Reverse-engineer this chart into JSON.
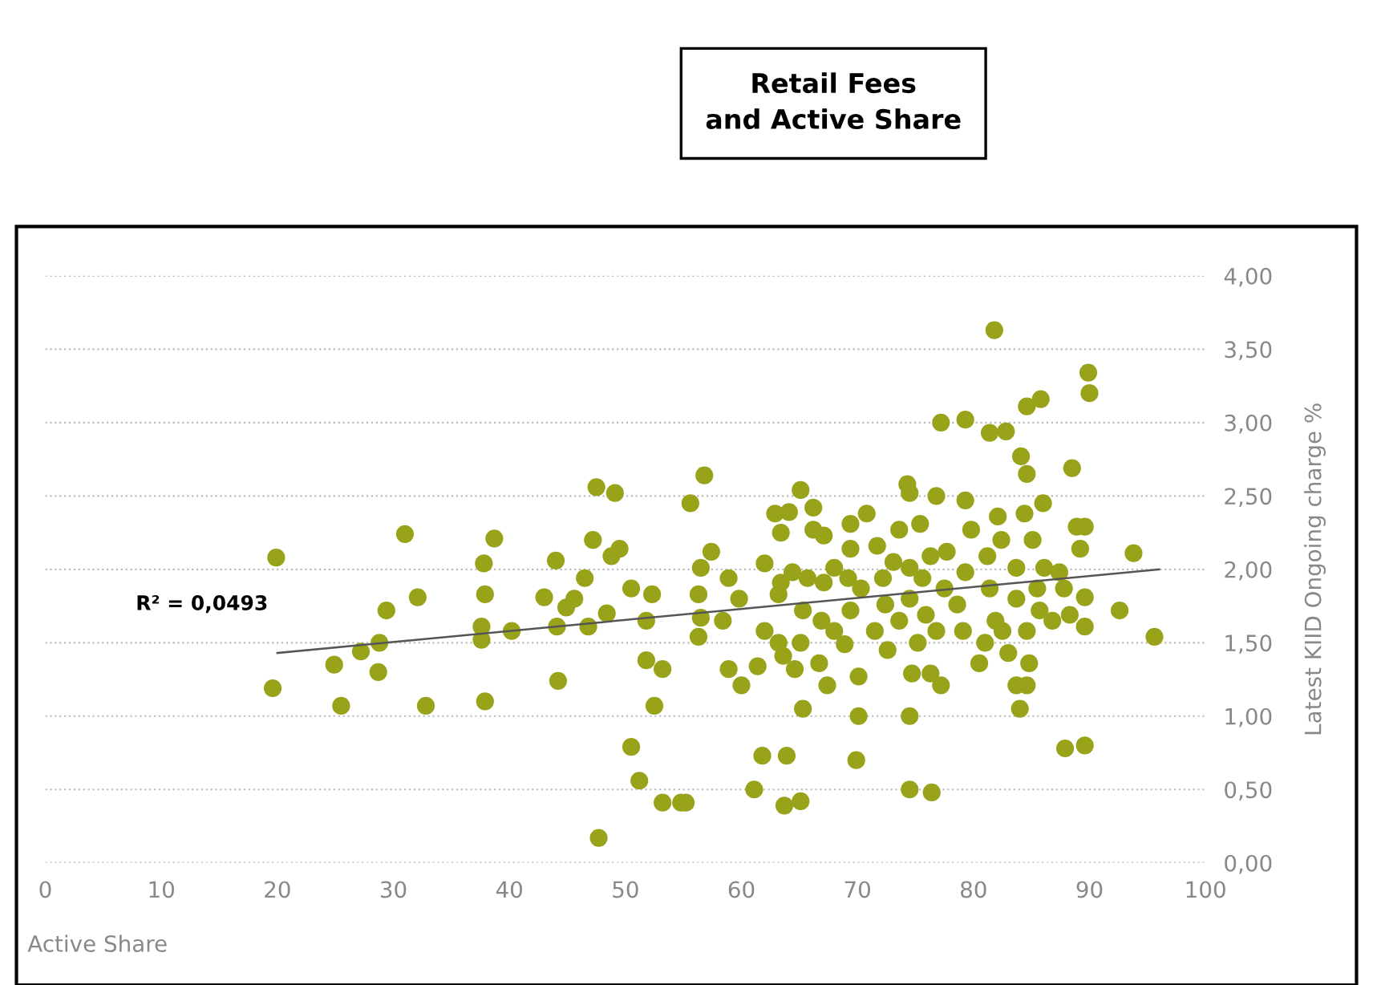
{
  "chart_data": {
    "type": "scatter",
    "title": "Retail Fees\nand Active Share",
    "xlabel": "Active Share",
    "ylabel": "Latest KIID Ongoing charge %",
    "annotations": [
      "R² = 0,0493"
    ],
    "xlim": [
      0,
      100
    ],
    "xticks": [
      0,
      10,
      20,
      30,
      40,
      50,
      60,
      70,
      80,
      90,
      100
    ],
    "ylim": [
      0,
      4.0
    ],
    "yticks": [
      {
        "value": 0,
        "label": "0,00"
      },
      {
        "value": 0.5,
        "label": "0,50"
      },
      {
        "value": 1.0,
        "label": "1,00"
      },
      {
        "value": 1.5,
        "label": "1,50"
      },
      {
        "value": 2.0,
        "label": "2,00"
      },
      {
        "value": 2.5,
        "label": "2,50"
      },
      {
        "value": 3.0,
        "label": "3,00"
      },
      {
        "value": 3.5,
        "label": "3,50"
      },
      {
        "value": 4.0,
        "label": "4,00"
      }
    ],
    "grid": "y",
    "legend": false,
    "series": [
      {
        "color": "#98a31a",
        "marker": "circle",
        "x": [
          19.9,
          19.6,
          31.0,
          24.9,
          25.5,
          27.2,
          28.8,
          28.7,
          29.4,
          32.1,
          32.8,
          38.7,
          37.8,
          37.9,
          37.6,
          37.6,
          37.9,
          40.2,
          44.0,
          43.0,
          44.1,
          44.2,
          44.9,
          45.6,
          46.5,
          47.2,
          46.8,
          47.5,
          49.1,
          48.4,
          48.8,
          49.5,
          50.5,
          51.8,
          52.3,
          51.8,
          53.2,
          52.5,
          50.5,
          51.2,
          53.2,
          54.8,
          47.7,
          81.8,
          89.9,
          90.0,
          77.2,
          79.3,
          81.4,
          82.8,
          84.6,
          85.8,
          88.5,
          84.1,
          84.6,
          56.8,
          55.6,
          65.1,
          74.3,
          76.8,
          79.3,
          82.1,
          86.0,
          88.9,
          89.6,
          89.2,
          93.8,
          92.6,
          95.6,
          89.6,
          89.6,
          87.8,
          87.9,
          89.6,
          84.0,
          84.6,
          83.7,
          74.5,
          70.1,
          69.9,
          70.1,
          65.3,
          61.8,
          63.9,
          61.1,
          63.7,
          65.1,
          74.5,
          76.4,
          55.2,
          61.4,
          58.9,
          60.0,
          64.6,
          62.0,
          62.9,
          64.1,
          63.4,
          57.4,
          56.5,
          56.3,
          56.5,
          56.3,
          58.9,
          59.8,
          58.4,
          62.0,
          63.2,
          63.6,
          65.1,
          63.4,
          64.4,
          65.7,
          67.1,
          66.2,
          66.2,
          67.1,
          65.3,
          66.9,
          66.7,
          67.4,
          68.0,
          68.9,
          69.4,
          69.4,
          69.2,
          69.4,
          70.3,
          70.8,
          71.5,
          71.7,
          72.2,
          72.4,
          72.6,
          73.1,
          73.6,
          73.6,
          74.5,
          74.5,
          74.7,
          75.2,
          75.4,
          75.6,
          75.9,
          76.3,
          76.3,
          77.2,
          76.8,
          77.5,
          77.7,
          78.6,
          79.1,
          79.3,
          79.8,
          80.5,
          81.0,
          81.2,
          81.4,
          81.9,
          82.4,
          82.5,
          83.0,
          83.7,
          83.7,
          84.4,
          84.6,
          84.8,
          85.1,
          85.5,
          85.7,
          86.1,
          86.8,
          87.4,
          88.3,
          74.5,
          68.0,
          63.2
        ],
        "values": [
          2.08,
          1.19,
          2.24,
          1.35,
          1.07,
          1.44,
          1.5,
          1.3,
          1.72,
          1.81,
          1.07,
          2.21,
          2.04,
          1.83,
          1.61,
          1.52,
          1.1,
          1.58,
          2.06,
          1.81,
          1.61,
          1.24,
          1.74,
          1.8,
          1.94,
          2.2,
          1.61,
          2.56,
          2.52,
          1.7,
          2.09,
          2.14,
          1.87,
          1.65,
          1.83,
          1.38,
          1.32,
          1.07,
          0.79,
          0.56,
          0.41,
          0.41,
          0.17,
          3.63,
          3.34,
          3.2,
          3.0,
          3.02,
          2.93,
          2.94,
          3.11,
          3.16,
          2.69,
          2.77,
          2.65,
          2.64,
          2.45,
          2.54,
          2.58,
          2.5,
          2.47,
          2.36,
          2.45,
          2.29,
          2.29,
          2.14,
          2.11,
          1.72,
          1.54,
          1.61,
          1.81,
          1.87,
          0.78,
          0.8,
          1.05,
          1.21,
          1.21,
          1.0,
          1.0,
          0.7,
          1.27,
          1.05,
          0.73,
          0.73,
          0.5,
          0.39,
          0.42,
          0.5,
          0.48,
          0.41,
          1.34,
          1.32,
          1.21,
          1.32,
          2.04,
          2.38,
          2.39,
          2.25,
          2.12,
          2.01,
          1.83,
          1.67,
          1.54,
          1.94,
          1.8,
          1.65,
          1.58,
          1.5,
          1.41,
          1.5,
          1.91,
          1.98,
          1.94,
          1.91,
          2.42,
          2.27,
          2.23,
          1.72,
          1.65,
          1.36,
          1.21,
          1.58,
          1.49,
          2.31,
          2.14,
          1.94,
          1.72,
          1.87,
          2.38,
          1.58,
          2.16,
          1.94,
          1.76,
          1.45,
          2.05,
          2.27,
          1.65,
          2.52,
          1.8,
          1.29,
          1.5,
          2.31,
          1.94,
          1.69,
          2.09,
          1.29,
          1.21,
          1.58,
          1.87,
          2.12,
          1.76,
          1.58,
          1.98,
          2.27,
          1.36,
          1.5,
          2.09,
          1.87,
          1.65,
          2.2,
          1.58,
          1.43,
          1.8,
          2.01,
          2.38,
          1.58,
          1.36,
          2.2,
          1.87,
          1.72,
          2.01,
          1.65,
          1.98,
          1.69,
          2.01,
          2.01,
          1.83
        ]
      },
      {
        "type": "line",
        "color": "#555555",
        "x": [
          20,
          96
        ],
        "values": [
          1.43,
          2.0
        ]
      }
    ]
  }
}
